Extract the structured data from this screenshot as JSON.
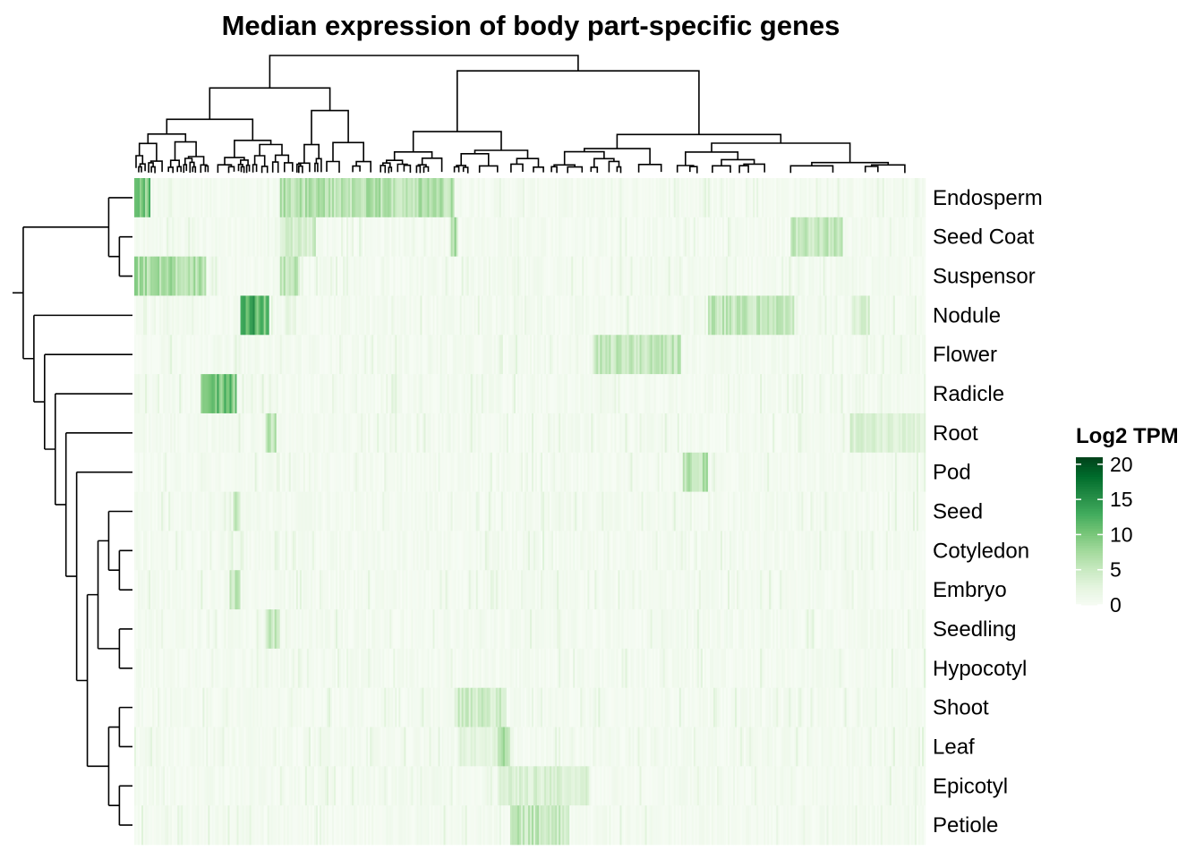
{
  "chart_data": {
    "type": "heatmap",
    "title": "Median expression of body part-specific genes",
    "rows": [
      "Endosperm",
      "Seed Coat",
      "Suspensor",
      "Nodule",
      "Flower",
      "Radicle",
      "Root",
      "Pod",
      "Seed",
      "Cotyledon",
      "Embryo",
      "Seedling",
      "Hypocotyl",
      "Shoot",
      "Leaf",
      "Epicotyl",
      "Petiole"
    ],
    "columns_clustered": true,
    "rows_clustered": true,
    "legend": {
      "title": "Log2 TPM",
      "ticks": [
        20,
        15,
        10,
        5,
        0
      ],
      "range": [
        0,
        21
      ],
      "colors": [
        "#f7fcf5",
        "#e5f5e0",
        "#c7e9c0",
        "#a1d99b",
        "#74c476",
        "#41ab5d",
        "#238b45",
        "#006d2c",
        "#00441b"
      ],
      "placement": "right"
    },
    "highlight_blocks": [
      {
        "row": "Endosperm",
        "col_range": [
          0.0,
          0.02
        ],
        "value": 11
      },
      {
        "row": "Endosperm",
        "col_range": [
          0.185,
          0.405
        ],
        "value": 7
      },
      {
        "row": "Seed Coat",
        "col_range": [
          0.185,
          0.23
        ],
        "value": 5
      },
      {
        "row": "Seed Coat",
        "col_range": [
          0.4,
          0.408
        ],
        "value": 8
      },
      {
        "row": "Seed Coat",
        "col_range": [
          0.83,
          0.895
        ],
        "value": 6
      },
      {
        "row": "Suspensor",
        "col_range": [
          0.0,
          0.09
        ],
        "value": 8
      },
      {
        "row": "Suspensor",
        "col_range": [
          0.185,
          0.21
        ],
        "value": 6
      },
      {
        "row": "Nodule",
        "col_range": [
          0.135,
          0.17
        ],
        "value": 13
      },
      {
        "row": "Nodule",
        "col_range": [
          0.725,
          0.835
        ],
        "value": 6
      },
      {
        "row": "Nodule",
        "col_range": [
          0.91,
          0.93
        ],
        "value": 4
      },
      {
        "row": "Flower",
        "col_range": [
          0.58,
          0.69
        ],
        "value": 6
      },
      {
        "row": "Radicle",
        "col_range": [
          0.085,
          0.13
        ],
        "value": 11
      },
      {
        "row": "Root",
        "col_range": [
          0.167,
          0.18
        ],
        "value": 7
      },
      {
        "row": "Root",
        "col_range": [
          0.905,
          1.0
        ],
        "value": 4
      },
      {
        "row": "Pod",
        "col_range": [
          0.693,
          0.725
        ],
        "value": 7
      },
      {
        "row": "Seed",
        "col_range": [
          0.125,
          0.135
        ],
        "value": 6
      },
      {
        "row": "Embryo",
        "col_range": [
          0.12,
          0.135
        ],
        "value": 6
      },
      {
        "row": "Seedling",
        "col_range": [
          0.167,
          0.185
        ],
        "value": 6
      },
      {
        "row": "Shoot",
        "col_range": [
          0.405,
          0.47
        ],
        "value": 5
      },
      {
        "row": "Leaf",
        "col_range": [
          0.41,
          0.46
        ],
        "value": 3
      },
      {
        "row": "Leaf",
        "col_range": [
          0.46,
          0.475
        ],
        "value": 7
      },
      {
        "row": "Epicotyl",
        "col_range": [
          0.46,
          0.575
        ],
        "value": 4
      },
      {
        "row": "Petiole",
        "col_range": [
          0.475,
          0.55
        ],
        "value": 6
      }
    ]
  }
}
